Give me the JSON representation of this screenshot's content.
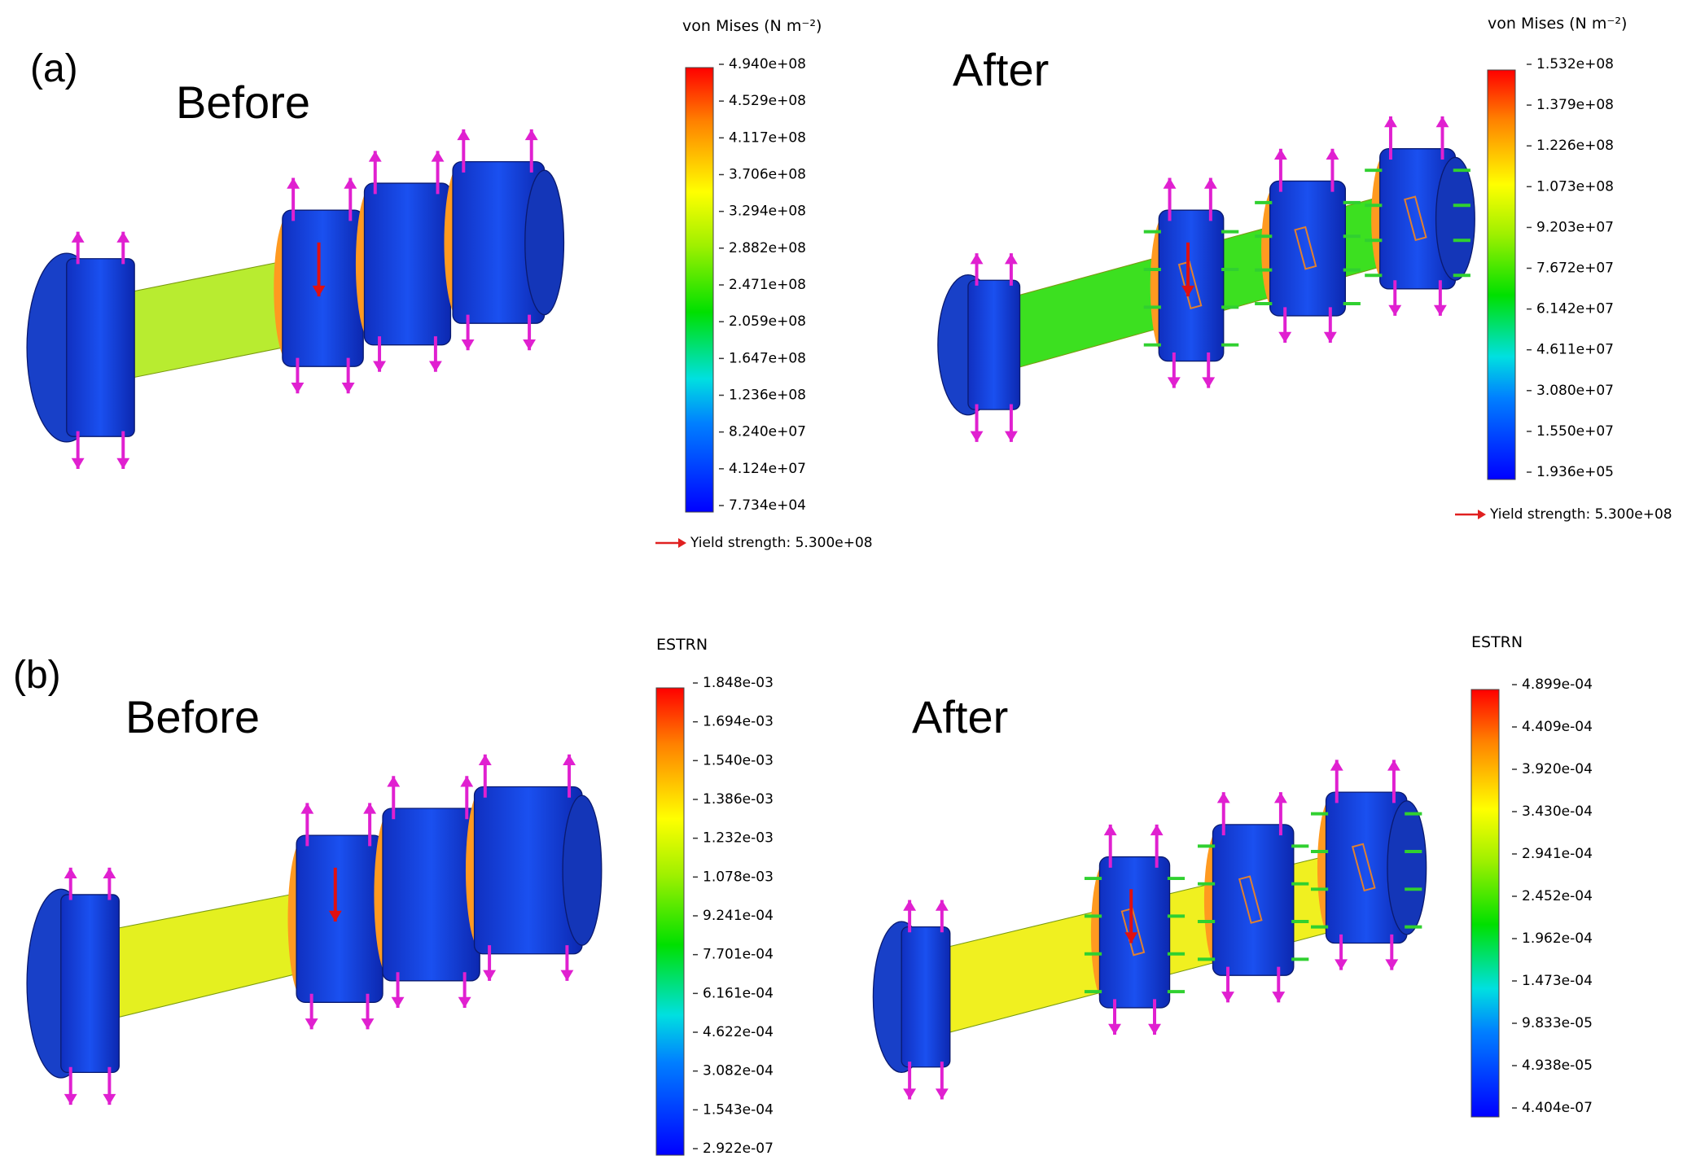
{
  "panels": [
    {
      "label": "(a)",
      "views": [
        {
          "title": "Before",
          "legend": {
            "title": "von Mises (N m⁻²)",
            "ticks": [
              "4.940e+08",
              "4.529e+08",
              "4.117e+08",
              "3.706e+08",
              "3.294e+08",
              "2.882e+08",
              "2.471e+08",
              "2.059e+08",
              "1.647e+08",
              "1.236e+08",
              "8.240e+07",
              "4.124e+07",
              "7.734e+04"
            ],
            "yield": "Yield strength: 5.300e+08"
          }
        },
        {
          "title": "After",
          "legend": {
            "title": "von Mises (N m⁻²)",
            "ticks": [
              "1.532e+08",
              "1.379e+08",
              "1.226e+08",
              "1.073e+08",
              "9.203e+07",
              "7.672e+07",
              "6.142e+07",
              "4.611e+07",
              "3.080e+07",
              "1.550e+07",
              "1.936e+05"
            ],
            "yield": "Yield strength: 5.300e+08"
          }
        }
      ]
    },
    {
      "label": "(b)",
      "views": [
        {
          "title": "Before",
          "legend": {
            "title": "ESTRN",
            "ticks": [
              "1.848e-03",
              "1.694e-03",
              "1.540e-03",
              "1.386e-03",
              "1.232e-03",
              "1.078e-03",
              "9.241e-04",
              "7.701e-04",
              "6.161e-04",
              "4.622e-04",
              "3.082e-04",
              "1.543e-04",
              "2.922e-07"
            ]
          }
        },
        {
          "title": "After",
          "legend": {
            "title": "ESTRN",
            "ticks": [
              "4.899e-04",
              "4.409e-04",
              "3.920e-04",
              "3.430e-04",
              "2.941e-04",
              "2.452e-04",
              "1.962e-04",
              "1.473e-04",
              "9.833e-05",
              "4.938e-05",
              "4.404e-07"
            ]
          }
        }
      ]
    }
  ]
}
